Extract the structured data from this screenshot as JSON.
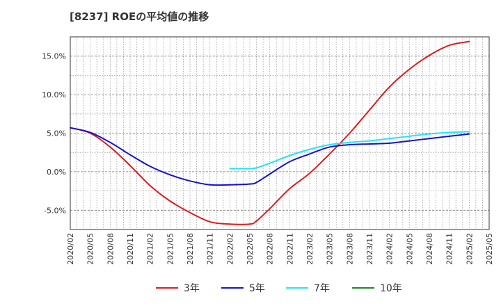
{
  "chart_data": {
    "type": "line",
    "title": "[8237]  ROEの平均値の推移",
    "xlabel": "",
    "ylabel": "",
    "y_format": "percent",
    "ylim": [
      -7.5,
      17.5
    ],
    "y_ticks": [
      -5.0,
      0.0,
      5.0,
      10.0,
      15.0
    ],
    "y_tick_labels": [
      "-5.0%",
      "0.0%",
      "5.0%",
      "10.0%",
      "15.0%"
    ],
    "x_ticks": [
      "2020/02",
      "2020/05",
      "2020/08",
      "2020/11",
      "2021/02",
      "2021/05",
      "2021/08",
      "2021/11",
      "2022/02",
      "2022/05",
      "2022/08",
      "2022/11",
      "2023/02",
      "2023/05",
      "2023/08",
      "2023/11",
      "2024/02",
      "2024/05",
      "2024/08",
      "2024/11",
      "2025/02",
      "2025/05"
    ],
    "grid": true,
    "legend_position": "bottom",
    "series": [
      {
        "name": "3年",
        "color": "#e01b1b",
        "x": [
          "2020/02",
          "2020/05",
          "2020/08",
          "2020/11",
          "2021/02",
          "2021/05",
          "2021/08",
          "2021/11",
          "2022/02",
          "2022/05",
          "2022/06",
          "2022/08",
          "2022/11",
          "2023/02",
          "2023/05",
          "2023/08",
          "2023/11",
          "2024/02",
          "2024/05",
          "2024/08",
          "2024/11",
          "2025/02"
        ],
        "values": [
          5.7,
          5.0,
          3.2,
          0.8,
          -1.8,
          -3.8,
          -5.3,
          -6.5,
          -6.8,
          -6.8,
          -6.4,
          -4.8,
          -2.2,
          -0.2,
          2.3,
          5.0,
          8.0,
          11.0,
          13.3,
          15.1,
          16.4,
          16.9
        ]
      },
      {
        "name": "5年",
        "color": "#1414c8",
        "x": [
          "2020/02",
          "2020/05",
          "2020/08",
          "2020/11",
          "2021/02",
          "2021/05",
          "2021/08",
          "2021/11",
          "2022/02",
          "2022/05",
          "2022/06",
          "2022/08",
          "2022/11",
          "2023/02",
          "2023/05",
          "2023/08",
          "2023/11",
          "2024/02",
          "2024/05",
          "2024/08",
          "2024/11",
          "2025/02"
        ],
        "values": [
          5.7,
          5.1,
          3.8,
          2.2,
          0.7,
          -0.4,
          -1.2,
          -1.7,
          -1.7,
          -1.6,
          -1.4,
          -0.3,
          1.3,
          2.3,
          3.2,
          3.5,
          3.6,
          3.7,
          4.0,
          4.3,
          4.6,
          4.9
        ]
      },
      {
        "name": "7年",
        "color": "#22e6f2",
        "x": [
          "2022/02",
          "2022/05",
          "2022/06",
          "2022/08",
          "2022/11",
          "2023/02",
          "2023/05",
          "2023/08",
          "2023/11",
          "2024/02",
          "2024/05",
          "2024/08",
          "2024/11",
          "2025/02"
        ],
        "values": [
          0.4,
          0.4,
          0.5,
          1.1,
          2.1,
          2.9,
          3.5,
          3.8,
          4.0,
          4.3,
          4.6,
          4.9,
          5.1,
          5.2
        ]
      },
      {
        "name": "10年",
        "color": "#1e8a1e",
        "x": [],
        "values": []
      }
    ]
  }
}
